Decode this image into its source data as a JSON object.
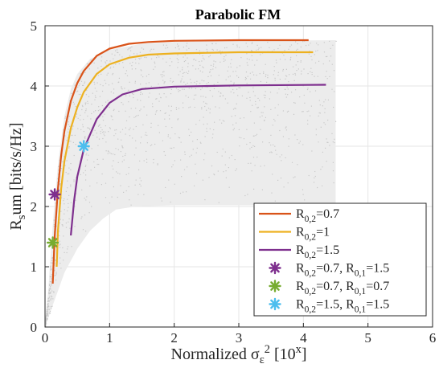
{
  "chart_data": {
    "type": "line",
    "title": "Parabolic FM",
    "xlabel": "Normalized σ_ε^2 [10^x]",
    "ylabel": "R_sum [bits/s/Hz]",
    "xlim": [
      0,
      6
    ],
    "ylim": [
      0,
      5
    ],
    "xticks": [
      "0",
      "1",
      "2",
      "3",
      "4",
      "5",
      "6"
    ],
    "yticks": [
      "0",
      "1",
      "2",
      "3",
      "4",
      "5"
    ],
    "grid": true,
    "legend_position": "bottom-right",
    "colors": {
      "orange": "#D95319",
      "yellow": "#EDB120",
      "purple": "#7E2F8E",
      "green": "#77AC30",
      "cyan": "#4DBEEE",
      "scatter": "#d9d9d9",
      "grid": "#e6e6e6"
    },
    "series": [
      {
        "name": "R0,2=0.7",
        "legend_label": "R_{0,2}=0.7",
        "color": "#D95319",
        "style": "line",
        "points": [
          [
            0.12,
            0.72
          ],
          [
            0.15,
            1.5
          ],
          [
            0.2,
            2.3
          ],
          [
            0.25,
            2.85
          ],
          [
            0.3,
            3.25
          ],
          [
            0.4,
            3.75
          ],
          [
            0.5,
            4.05
          ],
          [
            0.6,
            4.25
          ],
          [
            0.8,
            4.5
          ],
          [
            1.0,
            4.62
          ],
          [
            1.3,
            4.7
          ],
          [
            1.6,
            4.73
          ],
          [
            2.0,
            4.75
          ],
          [
            3.0,
            4.76
          ],
          [
            4.08,
            4.76
          ]
        ]
      },
      {
        "name": "R0,2=1",
        "legend_label": "R_{0,2}=1",
        "color": "#EDB120",
        "style": "line",
        "points": [
          [
            0.18,
            1.0
          ],
          [
            0.2,
            1.6
          ],
          [
            0.25,
            2.3
          ],
          [
            0.3,
            2.75
          ],
          [
            0.4,
            3.3
          ],
          [
            0.5,
            3.65
          ],
          [
            0.6,
            3.9
          ],
          [
            0.8,
            4.2
          ],
          [
            1.0,
            4.36
          ],
          [
            1.3,
            4.47
          ],
          [
            1.6,
            4.52
          ],
          [
            2.0,
            4.54
          ],
          [
            3.0,
            4.56
          ],
          [
            4.15,
            4.56
          ]
        ]
      },
      {
        "name": "R0,2=1.5",
        "legend_label": "R_{0,2}=1.5",
        "color": "#7E2F8E",
        "style": "line",
        "points": [
          [
            0.4,
            1.52
          ],
          [
            0.45,
            2.1
          ],
          [
            0.5,
            2.5
          ],
          [
            0.6,
            2.95
          ],
          [
            0.7,
            3.2
          ],
          [
            0.8,
            3.45
          ],
          [
            1.0,
            3.72
          ],
          [
            1.2,
            3.86
          ],
          [
            1.5,
            3.95
          ],
          [
            2.0,
            3.99
          ],
          [
            3.0,
            4.01
          ],
          [
            4.35,
            4.02
          ]
        ]
      },
      {
        "name": "R0,2=0.7, R0,1=1.5",
        "legend_label": "R_{0,2}=0.7, R_{0,1}=1.5",
        "color": "#7E2F8E",
        "style": "marker",
        "points": [
          [
            0.15,
            2.2
          ]
        ]
      },
      {
        "name": "R0,2=0.7, R0,1=0.7",
        "legend_label": "R_{0,2}=0.7, R_{0,1}=0.7",
        "color": "#77AC30",
        "style": "marker",
        "points": [
          [
            0.12,
            1.4
          ]
        ]
      },
      {
        "name": "R0,2=1.5, R0,1=1.5",
        "legend_label": "R_{0,2}=1.5, R_{0,1}=1.5",
        "color": "#4DBEEE",
        "style": "marker",
        "points": [
          [
            0.6,
            3.0
          ]
        ]
      }
    ],
    "scatter_region": {
      "x_range": [
        0,
        4.5
      ],
      "upper_bound": [
        [
          0,
          0.1
        ],
        [
          0.05,
          0.6
        ],
        [
          0.1,
          1.4
        ],
        [
          0.15,
          2.1
        ],
        [
          0.2,
          2.7
        ],
        [
          0.3,
          3.5
        ],
        [
          0.4,
          3.95
        ],
        [
          0.5,
          4.2
        ],
        [
          0.7,
          4.45
        ],
        [
          1.0,
          4.6
        ],
        [
          1.5,
          4.7
        ],
        [
          2.0,
          4.73
        ],
        [
          3.0,
          4.75
        ],
        [
          4.5,
          4.76
        ]
      ],
      "lower_bound": [
        [
          0,
          0.0
        ],
        [
          0.1,
          0.3
        ],
        [
          0.3,
          0.9
        ],
        [
          0.5,
          1.3
        ],
        [
          0.7,
          1.6
        ],
        [
          0.9,
          1.8
        ],
        [
          1.1,
          1.95
        ],
        [
          1.4,
          2.0
        ],
        [
          2.0,
          2.02
        ],
        [
          4.5,
          2.02
        ]
      ]
    }
  }
}
